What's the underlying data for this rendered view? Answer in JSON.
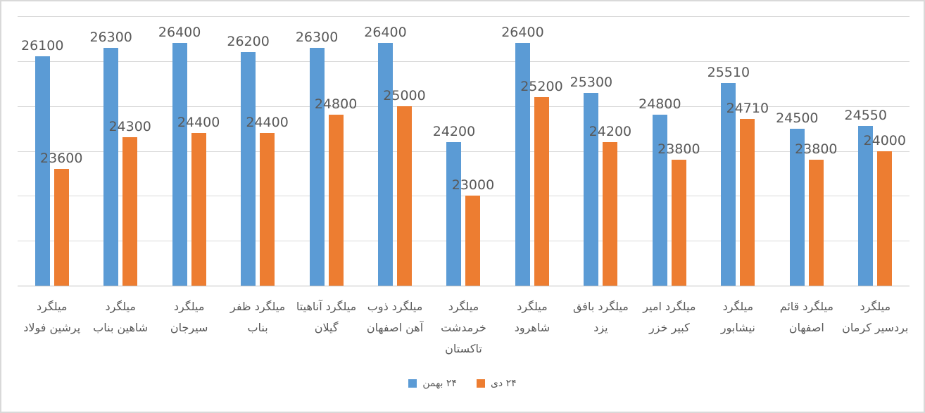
{
  "chart_data": {
    "type": "bar",
    "title": "",
    "xlabel": "",
    "ylabel": "",
    "ylim": [
      21000,
      27000
    ],
    "y_major_unit": 1000,
    "grid": true,
    "y_axis_labels_visible": false,
    "legend_position": "bottom",
    "categories": [
      "میلگرد\nپرشین فولاد",
      "میلگرد\nشاهین بناب",
      "میلگرد\nسیرجان",
      "میلگرد ظفر\nبناب",
      "میلگرد آناهیتا\nگیلان",
      "میلگرد ذوب\nآهن اصفهان",
      "میلگرد\nخرمدشت\nتاکستان",
      "میلگرد\nشاهرود",
      "میلگرد بافق\nیزد",
      "میلگرد امیر\nکبیر خزر",
      "میلگرد\nنیشابور",
      "میلگرد قائم\nاصفهان",
      "میلگرد\nبردسیر کرمان"
    ],
    "series": [
      {
        "name": "۲۴ بهمن",
        "color": "#5B9BD5",
        "values": [
          26100,
          26300,
          26400,
          26200,
          26300,
          26400,
          24200,
          26400,
          25300,
          24800,
          25510,
          24500,
          24550
        ]
      },
      {
        "name": "۲۴ دی",
        "color": "#ED7D31",
        "values": [
          23600,
          24300,
          24400,
          24400,
          24800,
          25000,
          23000,
          25200,
          24200,
          23800,
          24710,
          23800,
          24000
        ]
      }
    ],
    "style": {
      "gridline_color": "#D9D9D9",
      "axis_line_color": "#BFBFBF",
      "label_color": "#595959",
      "frame_border_color": "#D9D9D9",
      "background": "#FFFFFF"
    }
  }
}
